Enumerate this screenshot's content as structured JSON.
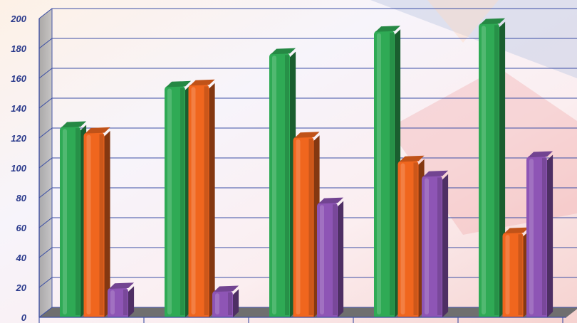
{
  "chart_data": {
    "type": "bar",
    "title": "",
    "xlabel": "",
    "ylabel": "",
    "categories": [
      "",
      "",
      "",
      "",
      ""
    ],
    "ylim": [
      0,
      200
    ],
    "yticks": [
      0,
      20,
      40,
      60,
      80,
      100,
      120,
      140,
      160,
      180,
      200
    ],
    "grid": true,
    "legend": "none",
    "style": "3d",
    "series": [
      {
        "color": "#2faa55",
        "values": [
          128,
          155,
          177,
          192,
          197
        ]
      },
      {
        "color": "#f0661e",
        "values": [
          124,
          156,
          121,
          105,
          57
        ]
      },
      {
        "color": "#8e55b5",
        "values": [
          20,
          18,
          77,
          95,
          108
        ]
      }
    ]
  }
}
